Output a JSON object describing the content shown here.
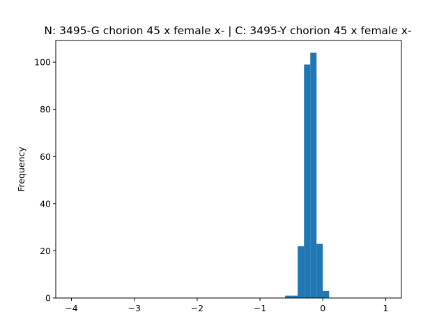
{
  "chart_data": {
    "type": "bar",
    "title": "N: 3495-G chorion 45 x female x- | C: 3495-Y chorion 45 x female x-",
    "xlabel": "",
    "ylabel": "Frequency",
    "xlim": [
      -4.25,
      1.25
    ],
    "ylim": [
      0,
      109.2
    ],
    "x_ticks": [
      -4,
      -3,
      -2,
      -1,
      0,
      1
    ],
    "x_tick_labels": [
      "−4",
      "−3",
      "−2",
      "−1",
      "0",
      "1"
    ],
    "y_ticks": [
      0,
      20,
      40,
      60,
      80,
      100
    ],
    "y_tick_labels": [
      "0",
      "20",
      "40",
      "60",
      "80",
      "100"
    ],
    "bin_width": 0.1,
    "bins": [
      {
        "x0": -0.6,
        "x1": -0.5,
        "value": 1
      },
      {
        "x0": -0.5,
        "x1": -0.4,
        "value": 1
      },
      {
        "x0": -0.4,
        "x1": -0.3,
        "value": 22
      },
      {
        "x0": -0.3,
        "x1": -0.2,
        "value": 99
      },
      {
        "x0": -0.2,
        "x1": -0.1,
        "value": 104
      },
      {
        "x0": -0.1,
        "x1": 0.0,
        "value": 23
      },
      {
        "x0": 0.0,
        "x1": 0.1,
        "value": 3
      }
    ],
    "bar_color": "#1f77b4",
    "grid": false
  }
}
